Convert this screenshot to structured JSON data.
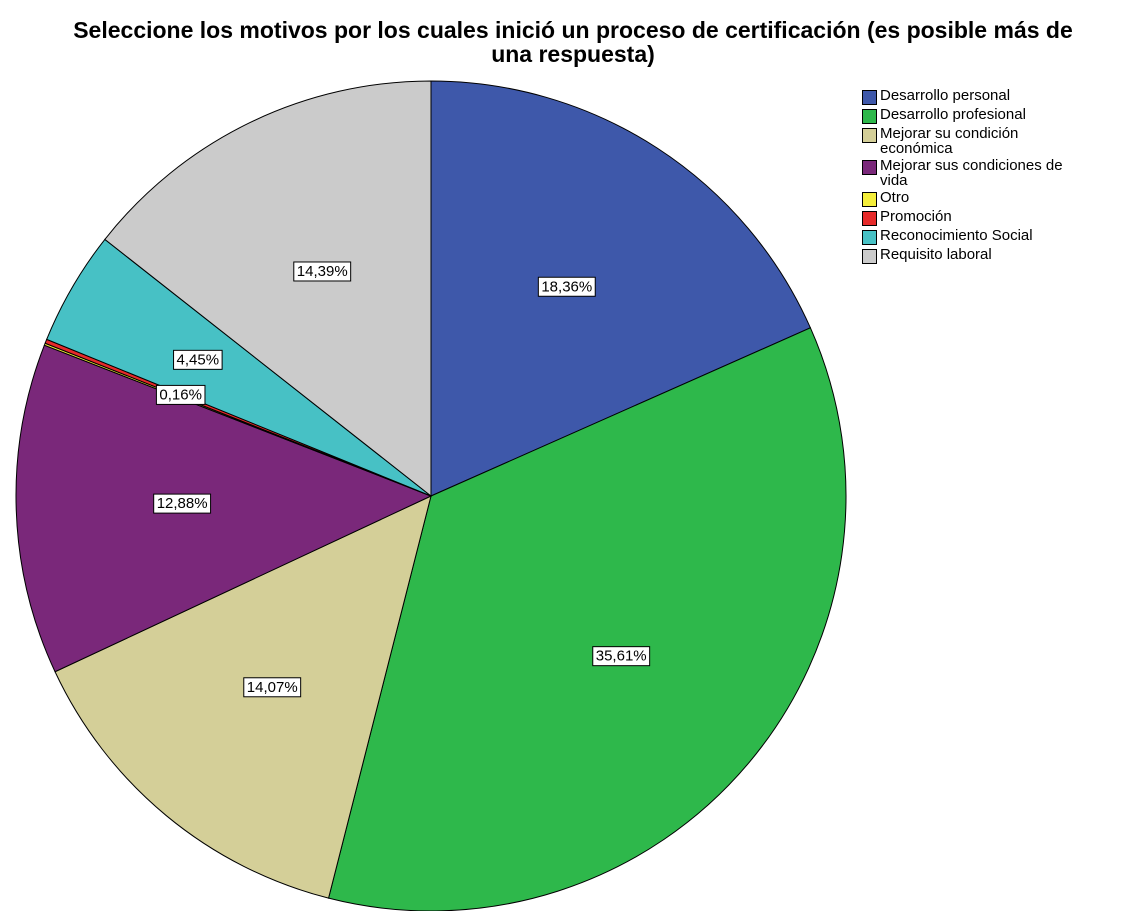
{
  "chart_data": {
    "type": "pie",
    "title": "Seleccione los motivos por los cuales inició un proceso de certificación  (es posible más de una respuesta)",
    "categories": [
      "Desarrollo personal",
      "Desarrollo profesional",
      "Mejorar su condición económica",
      "Mejorar sus condiciones de vida",
      "Otro",
      "Promoción",
      "Reconocimiento Social",
      "Requisito laboral"
    ],
    "values": [
      18.36,
      35.61,
      14.07,
      12.88,
      0.08,
      0.16,
      4.45,
      14.39
    ],
    "value_labels": [
      "18,36%",
      "35,61%",
      "14,07%",
      "12,88%",
      null,
      "0,16%",
      "4,45%",
      "14,39%"
    ],
    "colors": [
      "#3e58aa",
      "#2eb84b",
      "#d4cf98",
      "#7a287a",
      "#f4ee3a",
      "#e62a2a",
      "#47c1c5",
      "#cbcbcb"
    ]
  }
}
